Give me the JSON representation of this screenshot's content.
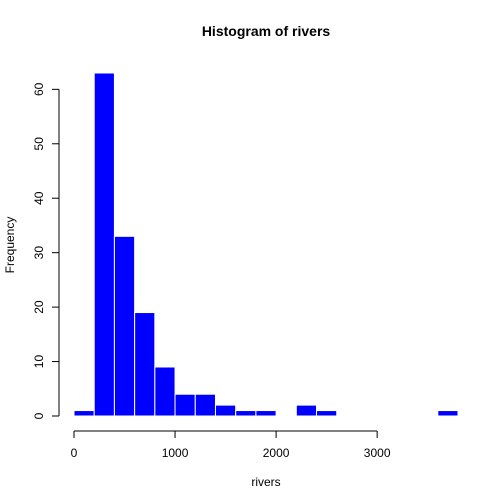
{
  "chart_data": {
    "type": "bar",
    "title": "Histogram of rivers",
    "xlabel": "rivers",
    "ylabel": "Frequency",
    "bin_edges": [
      0,
      200,
      400,
      600,
      800,
      1000,
      1200,
      1400,
      1600,
      1800,
      2000,
      2200,
      2400,
      2600,
      2800,
      3000,
      3200,
      3400,
      3600,
      3800
    ],
    "values": [
      1,
      63,
      33,
      19,
      9,
      4,
      4,
      2,
      1,
      1,
      0,
      2,
      1,
      0,
      0,
      0,
      0,
      0,
      1
    ],
    "xticks": [
      0,
      1000,
      2000,
      3000
    ],
    "yticks": [
      0,
      10,
      20,
      30,
      40,
      50,
      60
    ],
    "xlim": [
      0,
      3800
    ],
    "ylim": [
      0,
      63
    ],
    "bar_color": "#0000ff",
    "bar_border_color": "#ffffff"
  }
}
